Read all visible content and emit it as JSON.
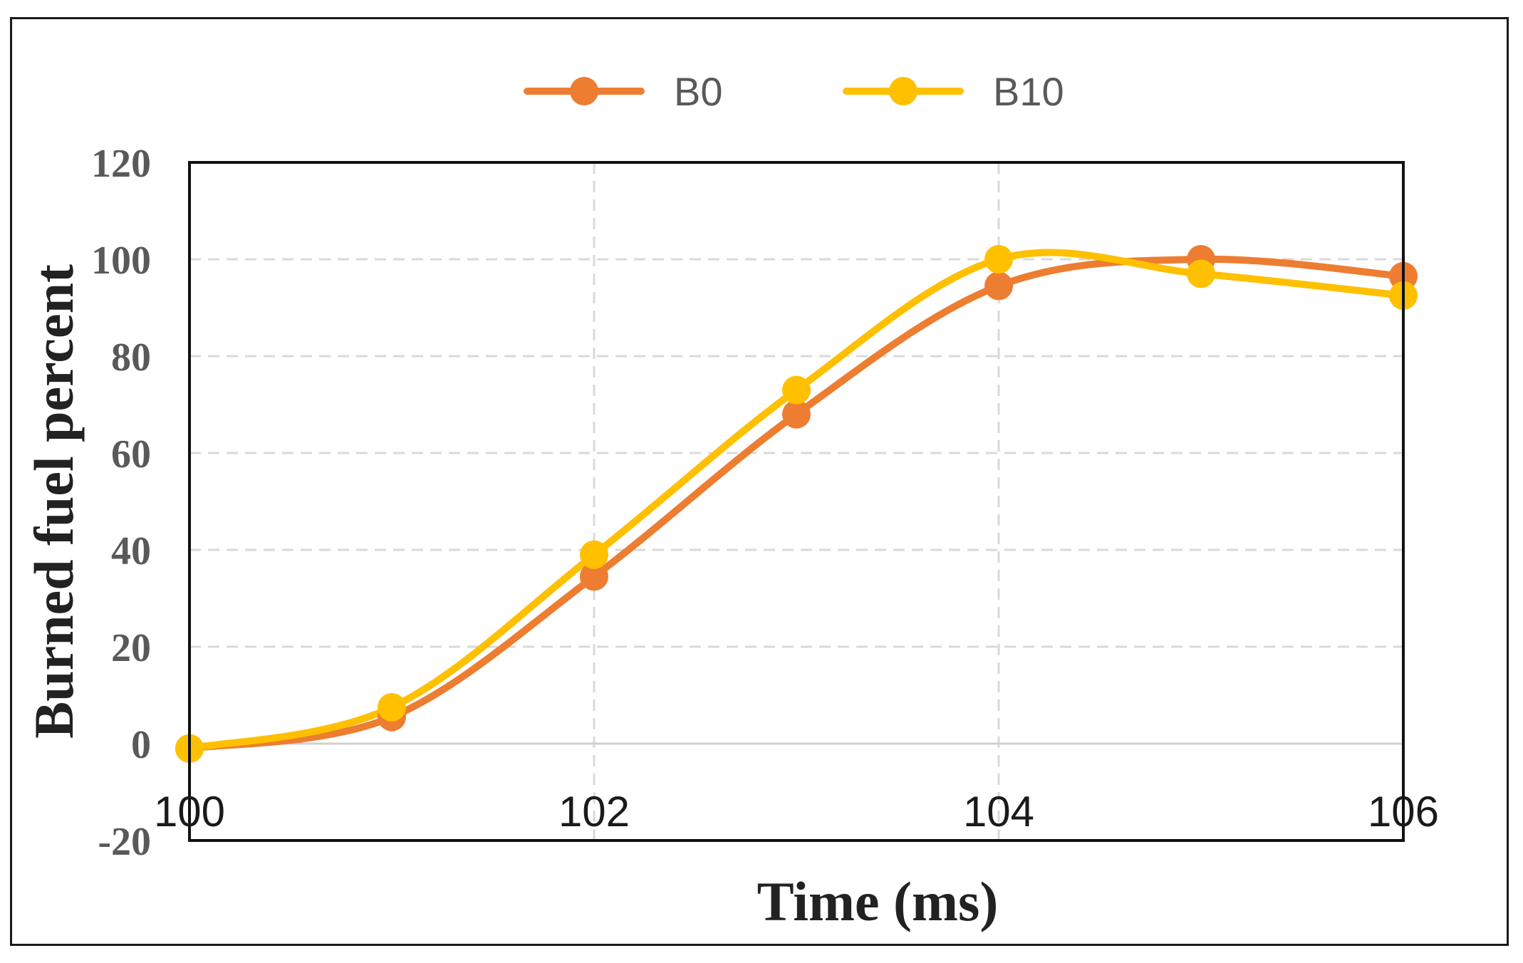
{
  "chart_data": {
    "type": "line",
    "xlabel": "Time (ms)",
    "ylabel": "Burned fuel percent",
    "xlim": [
      100,
      106
    ],
    "ylim": [
      -20,
      120
    ],
    "x_ticks": [
      "100",
      "102",
      "104",
      "106"
    ],
    "y_ticks": [
      "120",
      "100",
      "80",
      "60",
      "40",
      "20",
      "0",
      "-20"
    ],
    "grid": true,
    "legend_position": "top-center",
    "x": [
      100,
      101,
      102,
      103,
      104,
      105,
      106
    ],
    "series": [
      {
        "name": "B0",
        "color": "#ED7D31",
        "values": [
          -1,
          5.5,
          34.5,
          68,
          94.5,
          100,
          96.5
        ]
      },
      {
        "name": "B10",
        "color": "#FFC000",
        "values": [
          -1,
          7.5,
          39,
          73,
          100,
          97,
          92.5
        ]
      }
    ]
  }
}
